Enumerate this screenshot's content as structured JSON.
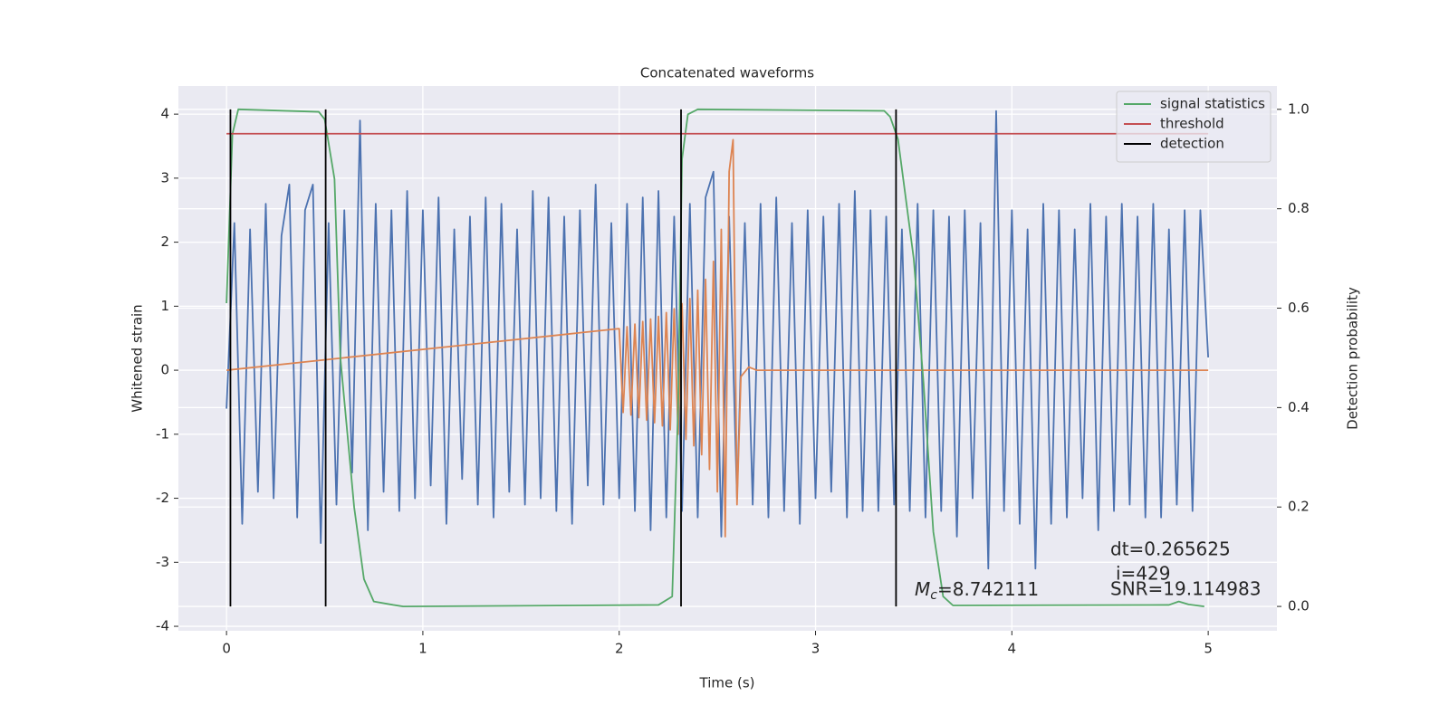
{
  "chart_data": {
    "type": "line",
    "title": "Concatenated waveforms",
    "x_label": "Time (s)",
    "y_label": "Whitened strain",
    "y2_label": "Detection probability",
    "xlim": [
      -0.245,
      5.35
    ],
    "ylim": [
      -4.07,
      4.44
    ],
    "y2lim": [
      -0.049,
      1.047
    ],
    "xticks": [
      0,
      1,
      2,
      3,
      4,
      5
    ],
    "yticks": [
      -4,
      -3,
      -2,
      -1,
      0,
      1,
      2,
      3,
      4
    ],
    "y2ticks": [
      {
        "value": 0,
        "label": "0.0"
      },
      {
        "value": 0.2,
        "label": "0.2"
      },
      {
        "value": 0.4,
        "label": "0.4"
      },
      {
        "value": 0.6,
        "label": "0.6"
      },
      {
        "value": 0.8,
        "label": "0.8"
      },
      {
        "value": 1,
        "label": "1.0"
      }
    ],
    "grid": true,
    "legend_position": "upper right",
    "series": [
      {
        "color": "#4c72b0",
        "legend": false,
        "x": [
          0,
          0.04,
          0.08,
          0.12,
          0.16,
          0.2,
          0.24,
          0.28,
          0.32,
          0.36,
          0.4,
          0.44,
          0.48,
          0.52,
          0.56,
          0.6,
          0.64,
          0.68,
          0.72,
          0.76,
          0.8,
          0.84,
          0.88,
          0.92,
          0.96,
          1.0,
          1.04,
          1.08,
          1.12,
          1.16,
          1.2,
          1.24,
          1.28,
          1.32,
          1.36,
          1.4,
          1.44,
          1.48,
          1.52,
          1.56,
          1.6,
          1.64,
          1.68,
          1.72,
          1.76,
          1.8,
          1.84,
          1.88,
          1.92,
          1.96,
          2.0,
          2.04,
          2.08,
          2.12,
          2.16,
          2.2,
          2.24,
          2.28,
          2.32,
          2.36,
          2.4,
          2.44,
          2.48,
          2.52,
          2.56,
          2.6,
          2.64,
          2.68,
          2.72,
          2.76,
          2.8,
          2.84,
          2.88,
          2.92,
          2.96,
          3.0,
          3.04,
          3.08,
          3.12,
          3.16,
          3.2,
          3.24,
          3.28,
          3.32,
          3.36,
          3.4,
          3.44,
          3.48,
          3.52,
          3.56,
          3.6,
          3.64,
          3.68,
          3.72,
          3.76,
          3.8,
          3.84,
          3.88,
          3.92,
          3.96,
          4.0,
          4.04,
          4.08,
          4.12,
          4.16,
          4.2,
          4.24,
          4.28,
          4.32,
          4.36,
          4.4,
          4.44,
          4.48,
          4.52,
          4.56,
          4.6,
          4.64,
          4.68,
          4.72,
          4.76,
          4.8,
          4.84,
          4.88,
          4.92,
          4.96,
          5.0
        ],
        "values": [
          -0.6,
          2.3,
          -2.4,
          2.2,
          -1.9,
          2.6,
          -2.0,
          2.1,
          2.9,
          -2.3,
          2.5,
          2.9,
          -2.7,
          2.3,
          -2.1,
          2.5,
          -1.6,
          3.9,
          -2.5,
          2.6,
          -1.9,
          2.5,
          -2.2,
          2.8,
          -2.0,
          2.5,
          -1.8,
          2.7,
          -2.4,
          2.2,
          -1.7,
          2.4,
          -2.1,
          2.7,
          -2.3,
          2.6,
          -1.9,
          2.2,
          -2.1,
          2.8,
          -2.0,
          2.7,
          -2.2,
          2.4,
          -2.4,
          2.5,
          -1.8,
          2.9,
          -2.1,
          2.3,
          -2.0,
          2.6,
          -2.2,
          2.7,
          -2.5,
          2.8,
          -2.3,
          2.4,
          -2.2,
          2.6,
          -2.3,
          2.7,
          3.1,
          -2.6,
          2.4,
          -2.0,
          2.3,
          -2.1,
          2.6,
          -2.3,
          2.7,
          -2.2,
          2.3,
          -2.4,
          2.5,
          -2.0,
          2.4,
          -1.9,
          2.6,
          -2.3,
          2.8,
          -2.2,
          2.5,
          -2.2,
          2.4,
          -2.1,
          2.2,
          -2.2,
          2.6,
          -2.3,
          2.5,
          -2.2,
          2.4,
          -2.6,
          2.5,
          -2.0,
          2.3,
          -3.1,
          4.05,
          -2.2,
          2.5,
          -2.4,
          2.2,
          -3.1,
          2.6,
          -2.4,
          2.5,
          -2.3,
          2.2,
          -2.0,
          2.6,
          -2.5,
          2.4,
          -2.2,
          2.6,
          -2.1,
          2.4,
          -2.3,
          2.6,
          -2.3,
          2.2,
          -2.1,
          2.5,
          -2.2,
          2.5,
          0.2
        ]
      },
      {
        "color": "#dd8452",
        "legend": false,
        "x": [
          0,
          2.0,
          2.02,
          2.04,
          2.06,
          2.08,
          2.1,
          2.12,
          2.14,
          2.16,
          2.18,
          2.2,
          2.22,
          2.24,
          2.26,
          2.28,
          2.3,
          2.32,
          2.34,
          2.36,
          2.38,
          2.4,
          2.42,
          2.44,
          2.46,
          2.48,
          2.5,
          2.52,
          2.54,
          2.56,
          2.58,
          2.6,
          2.62,
          2.66,
          2.7,
          3.0,
          5.0
        ],
        "values": [
          0,
          0.65,
          -0.66,
          0.68,
          -0.7,
          0.72,
          -0.74,
          0.76,
          -0.78,
          0.8,
          -0.82,
          0.84,
          -0.87,
          0.9,
          -0.93,
          0.96,
          -1.0,
          1.04,
          -1.08,
          1.12,
          -1.18,
          1.25,
          -1.32,
          1.42,
          -1.55,
          1.7,
          -1.9,
          2.2,
          -2.6,
          3.1,
          3.6,
          -2.1,
          -0.1,
          0.05,
          0,
          0,
          0
        ]
      },
      {
        "name": "signal statistics",
        "color": "#55a868",
        "axis": "y2",
        "x": [
          0,
          0.03,
          0.06,
          0.47,
          0.5,
          0.55,
          0.58,
          0.65,
          0.7,
          0.75,
          0.85,
          0.9,
          2.2,
          2.27,
          2.3,
          2.32,
          2.35,
          2.4,
          3.35,
          3.38,
          3.42,
          3.5,
          3.55,
          3.6,
          3.65,
          3.7,
          4.8,
          4.85,
          4.9,
          4.98
        ],
        "values": [
          0.61,
          0.95,
          1.0,
          0.995,
          0.98,
          0.86,
          0.5,
          0.2,
          0.055,
          0.01,
          0.003,
          0,
          0.003,
          0.02,
          0.4,
          0.9,
          0.99,
          1.0,
          0.997,
          0.985,
          0.94,
          0.7,
          0.45,
          0.15,
          0.02,
          0.002,
          0.003,
          0.01,
          0.004,
          0
        ]
      },
      {
        "name": "threshold",
        "color": "#c44e52",
        "axis": "y2",
        "x": [
          0,
          5
        ],
        "values": [
          0.951,
          0.951
        ]
      },
      {
        "name": "detection",
        "color": "#000000",
        "axis": "y2",
        "x": [
          0.02,
          0.02,
          0.26,
          0.505,
          0.505,
          1.4,
          2.315,
          2.315,
          2.86,
          3.41,
          3.41
        ],
        "values": [
          0,
          1,
          null,
          1,
          0,
          null,
          0,
          1,
          null,
          1,
          0
        ]
      }
    ],
    "annotations": [
      {
        "text": "dt=0.265625"
      },
      {
        "text": "i=429"
      },
      {
        "text": "SNR=19.114983"
      },
      {
        "symbol": "M",
        "subscript": "c",
        "text": "=8.742111"
      }
    ]
  }
}
